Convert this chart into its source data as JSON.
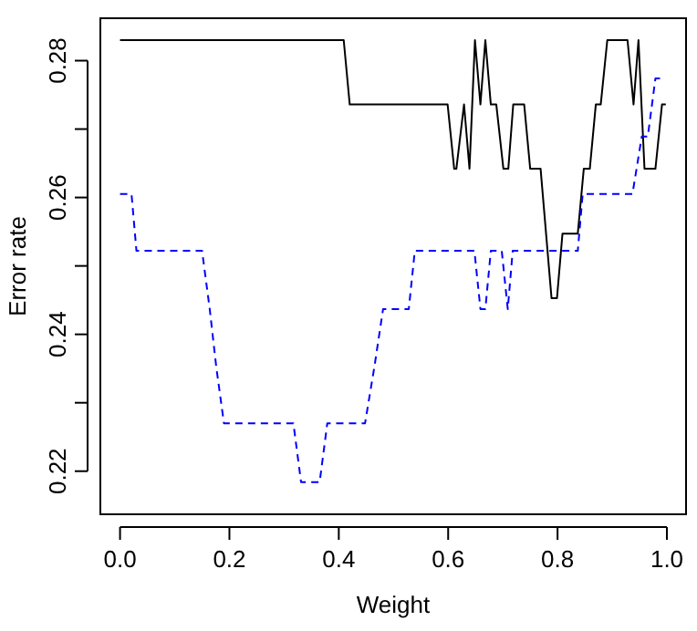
{
  "chart_data": {
    "type": "line",
    "xlabel": "Weight",
    "ylabel": "Error rate",
    "xlim": [
      -0.036,
      1.035
    ],
    "ylim": [
      0.2137,
      0.2862
    ],
    "xticks": [
      {
        "value": 0,
        "label": "0.0"
      },
      0.2,
      0.4,
      0.6,
      0.8,
      {
        "value": 1,
        "label": "1.0"
      }
    ],
    "yticks": [
      0.22,
      {
        "value": 0.23,
        "label": null
      },
      0.24,
      {
        "value": 0.25,
        "label": null
      },
      0.26,
      {
        "value": 0.27,
        "label": null
      },
      0.28
    ],
    "grid": false,
    "marker": "none",
    "series": [
      {
        "color": "#000000",
        "line_style": "solid",
        "x": [
          0,
          0.409,
          0.42,
          0.599,
          0.611,
          0.615,
          0.629,
          0.639,
          0.649,
          0.659,
          0.668,
          0.678,
          0.688,
          0.701,
          0.71,
          0.719,
          0.739,
          0.75,
          0.769,
          0.789,
          0.799,
          0.809,
          0.837,
          0.848,
          0.859,
          0.87,
          0.879,
          0.891,
          0.928,
          0.939,
          0.948,
          0.959,
          0.979,
          0.991,
          0.998
        ],
        "values": [
          0.283,
          0.283,
          0.2736,
          0.2736,
          0.2642,
          0.2642,
          0.2736,
          0.2642,
          0.283,
          0.2736,
          0.283,
          0.2736,
          0.2736,
          0.2642,
          0.2642,
          0.2736,
          0.2736,
          0.2642,
          0.2642,
          0.2453,
          0.2453,
          0.2547,
          0.2547,
          0.2642,
          0.2642,
          0.2736,
          0.2736,
          0.283,
          0.283,
          0.2736,
          0.283,
          0.2642,
          0.2642,
          0.2736,
          0.2736
        ]
      },
      {
        "color": "#0000ff",
        "line_style": "dashed",
        "x": [
          0,
          0.021,
          0.03,
          0.15,
          0.164,
          0.176,
          0.19,
          0.317,
          0.331,
          0.365,
          0.379,
          0.448,
          0.465,
          0.481,
          0.528,
          0.539,
          0.648,
          0.659,
          0.668,
          0.678,
          0.698,
          0.709,
          0.718,
          0.837,
          0.846,
          0.937,
          0.954,
          0.965,
          0.979,
          0.993
        ],
        "values": [
          0.2605,
          0.2605,
          0.2522,
          0.2522,
          0.2437,
          0.2352,
          0.227,
          0.227,
          0.2184,
          0.2184,
          0.227,
          0.227,
          0.2352,
          0.2437,
          0.2437,
          0.2522,
          0.2522,
          0.2437,
          0.2437,
          0.2522,
          0.2522,
          0.2437,
          0.2522,
          0.2522,
          0.2605,
          0.2605,
          0.2689,
          0.2689,
          0.2774,
          0.2774
        ]
      }
    ]
  }
}
